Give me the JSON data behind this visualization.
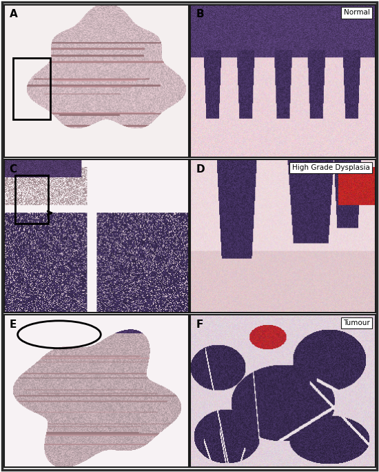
{
  "panels": [
    {
      "label": "A",
      "annotation": null,
      "shape": "rectangle"
    },
    {
      "label": "B",
      "annotation": "Normal",
      "shape": null
    },
    {
      "label": "C",
      "annotation": null,
      "shape": "rectangle_arrow"
    },
    {
      "label": "D",
      "annotation": "High Grade Dysplasia",
      "shape": null
    },
    {
      "label": "E",
      "annotation": null,
      "shape": "ellipse"
    },
    {
      "label": "F",
      "annotation": "Tumour",
      "shape": null
    }
  ],
  "grid_rows": 3,
  "grid_cols": 2,
  "bg_color": "#ffffff",
  "border_color": "#1a1a1a",
  "label_color": "#000000",
  "annotation_bg": "#ffffff",
  "annotation_color": "#000000",
  "fig_width": 5.5,
  "fig_height": 6.84,
  "outer_border": "#2a2a2a"
}
